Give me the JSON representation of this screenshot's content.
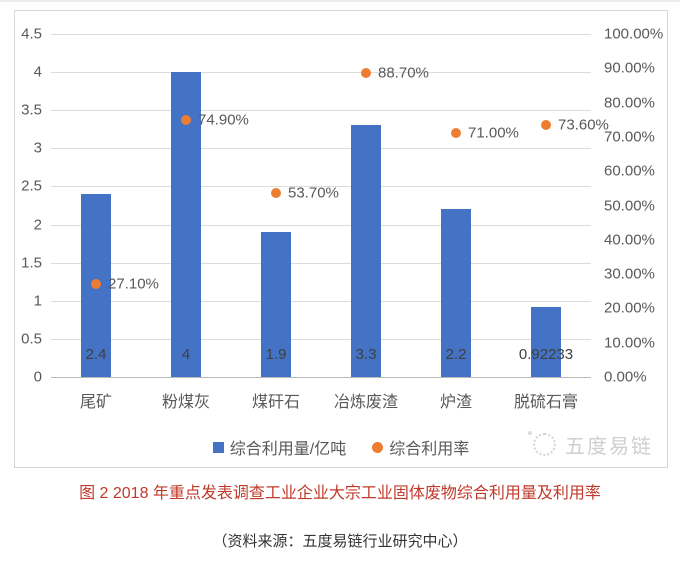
{
  "chart_data": {
    "type": "bar",
    "title": "",
    "categories": [
      "尾矿",
      "粉煤灰",
      "煤矸石",
      "冶炼废渣",
      "炉渣",
      "脱硫石膏"
    ],
    "series": [
      {
        "name": "综合利用量/亿吨",
        "type": "bar",
        "axis": "left",
        "values": [
          2.4,
          4,
          1.9,
          3.3,
          2.2,
          0.92233
        ],
        "labels": [
          "2.4",
          "4",
          "1.9",
          "3.3",
          "2.2",
          "0.92233"
        ]
      },
      {
        "name": "综合利用率",
        "type": "scatter",
        "axis": "right",
        "values": [
          27.1,
          74.9,
          53.7,
          88.7,
          71.0,
          73.6
        ],
        "labels": [
          "27.10%",
          "74.90%",
          "53.70%",
          "88.70%",
          "71.00%",
          "73.60%"
        ]
      }
    ],
    "left_axis": {
      "min": 0,
      "max": 4.5,
      "step": 0.5,
      "ticks": [
        "4.5",
        "4",
        "3.5",
        "3",
        "2.5",
        "2",
        "1.5",
        "1",
        "0.5",
        "0"
      ]
    },
    "right_axis": {
      "min": 0,
      "max": 100,
      "step": 10,
      "ticks": [
        "100.00%",
        "90.00%",
        "80.00%",
        "70.00%",
        "60.00%",
        "50.00%",
        "40.00%",
        "30.00%",
        "20.00%",
        "10.00%",
        "0.00%"
      ]
    },
    "grid": true,
    "legend_position": "bottom"
  },
  "watermark": {
    "text": "五度易链"
  },
  "caption": {
    "text": "图 2 2018 年重点发表调查工业企业大宗工业固体废物综合利用量及利用率"
  },
  "source": {
    "text": "（资料来源：五度易链行业研究中心）"
  },
  "colors": {
    "bar": "#4472c4",
    "dot": "#ed7d31",
    "caption_red": "#c0392b",
    "axis_text": "#595959",
    "gridline": "#dcdcdc"
  }
}
